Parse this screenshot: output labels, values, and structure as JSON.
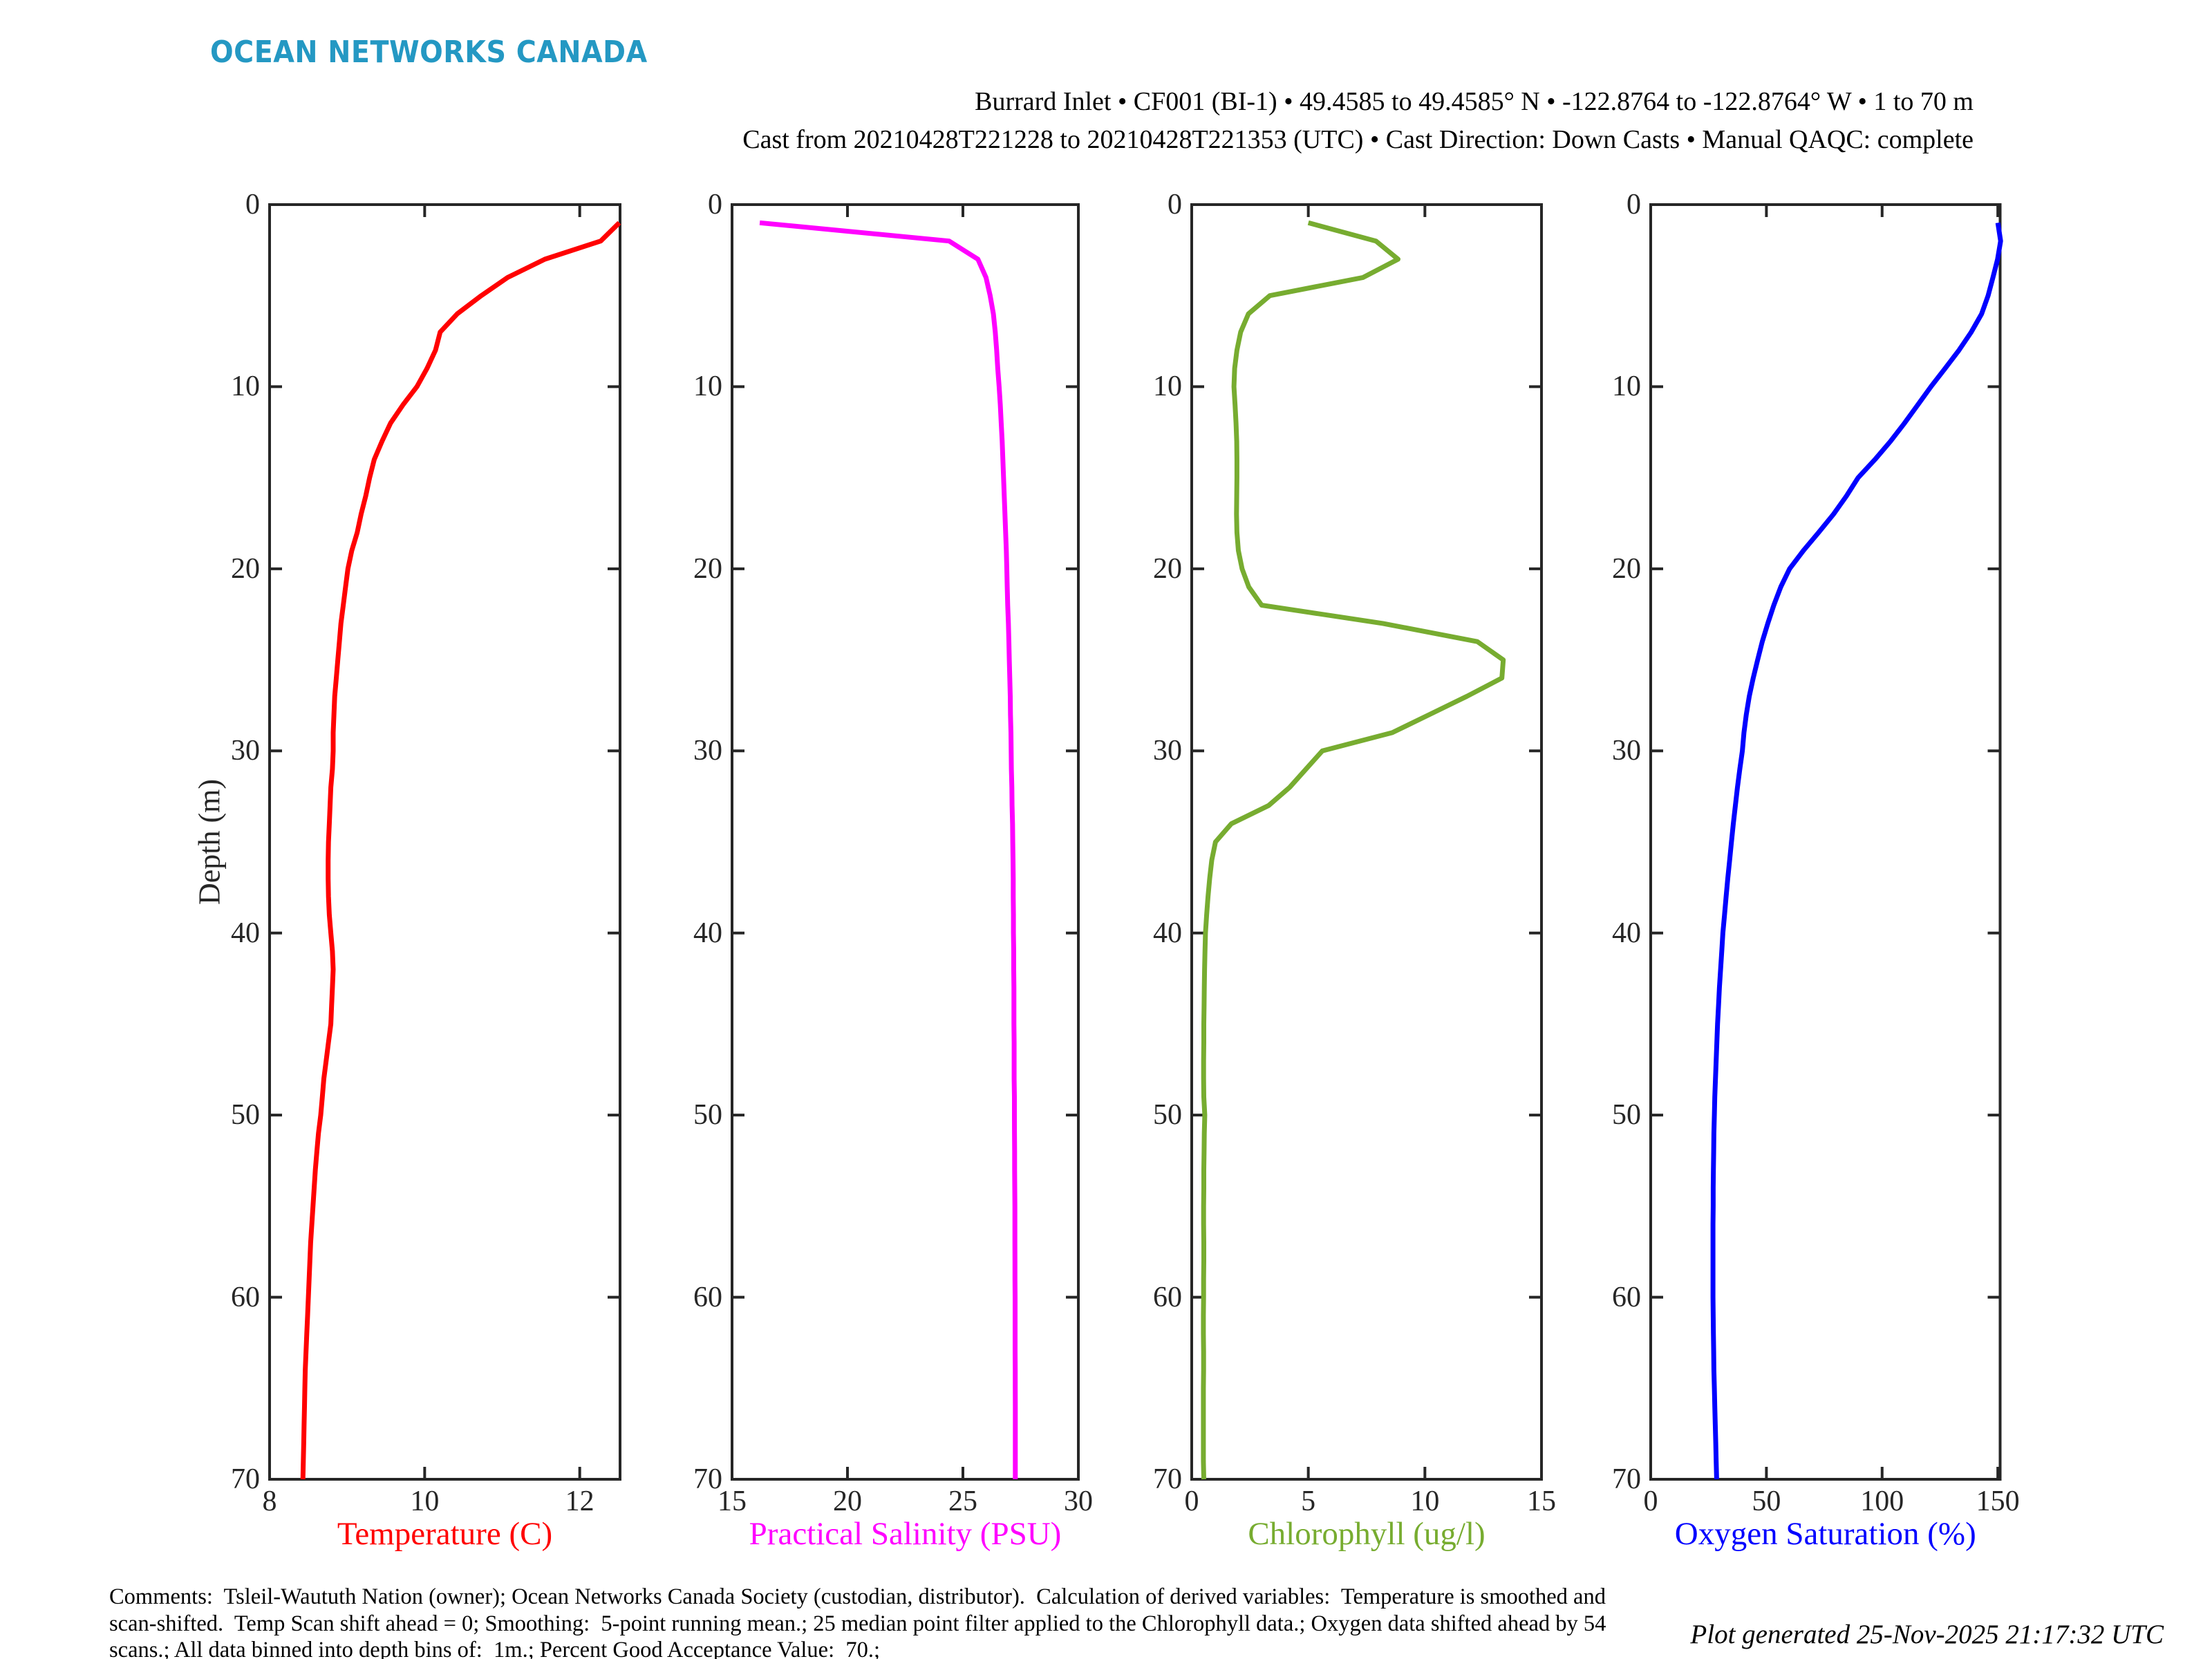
{
  "logo": {
    "text": "OCEAN NETWORKS CANADA",
    "color": "#2498c3"
  },
  "title": {
    "line1": "Burrard Inlet • CF001 (BI-1) • 49.4585 to 49.4585° N • -122.8764 to -122.8764° W • 1 to 70 m",
    "line2": "Cast from 20210428T221228 to 20210428T221353 (UTC) • Cast Direction: Down Casts • Manual QAQC: complete"
  },
  "footer": {
    "comments_lines": [
      "Comments:  Tsleil-Waututh Nation (owner); Ocean Networks Canada Society (custodian, distributor).  Calculation of derived variables:  Temperature is smoothed and",
      "scan-shifted.  Temp Scan shift ahead = 0; Smoothing:  5-point running mean.; 25 median point filter applied to the Chlorophyll data.; Oxygen data shifted ahead by 54",
      "scans.; All data binned into depth bins of:  1m.; Percent Good Acceptance Value:  70.;"
    ],
    "generated": "Plot generated 25-Nov-2025 21:17:32 UTC"
  },
  "chart_data": {
    "type": "line",
    "subtype": "vertical-depth-profiles",
    "ylabel": "Depth (m)",
    "ylim": [
      0,
      70
    ],
    "yticks": [
      0,
      10,
      20,
      30,
      40,
      50,
      60,
      70
    ],
    "grid": false,
    "axis_color": "#262626",
    "depth_m": [
      1,
      2,
      3,
      4,
      5,
      6,
      7,
      8,
      9,
      10,
      11,
      12,
      13,
      14,
      15,
      16,
      17,
      18,
      19,
      20,
      21,
      22,
      23,
      24,
      25,
      26,
      27,
      28,
      29,
      30,
      31,
      32,
      33,
      34,
      35,
      36,
      37,
      38,
      39,
      40,
      41,
      42,
      43,
      44,
      45,
      46,
      47,
      48,
      49,
      50,
      51,
      52,
      53,
      54,
      55,
      56,
      57,
      58,
      59,
      60,
      61,
      62,
      63,
      64,
      65,
      66,
      67,
      68,
      69,
      70
    ],
    "panels": [
      {
        "xlabel": "Temperature (C)",
        "color": "#ff0000",
        "xlim": [
          8,
          12.52
        ],
        "xticks": [
          8,
          10,
          12
        ],
        "values": [
          12.51,
          12.27,
          11.55,
          11.07,
          10.73,
          10.42,
          10.2,
          10.14,
          10.03,
          9.9,
          9.72,
          9.56,
          9.45,
          9.35,
          9.29,
          9.24,
          9.18,
          9.13,
          9.06,
          9.01,
          8.98,
          8.95,
          8.92,
          8.9,
          8.88,
          8.86,
          8.84,
          8.83,
          8.82,
          8.82,
          8.81,
          8.79,
          8.78,
          8.77,
          8.76,
          8.755,
          8.755,
          8.76,
          8.77,
          8.79,
          8.81,
          8.82,
          8.81,
          8.8,
          8.79,
          8.76,
          8.73,
          8.7,
          8.68,
          8.66,
          8.63,
          8.61,
          8.59,
          8.575,
          8.56,
          8.545,
          8.53,
          8.52,
          8.51,
          8.5,
          8.49,
          8.48,
          8.47,
          8.46,
          8.455,
          8.45,
          8.445,
          8.44,
          8.435,
          8.43
        ]
      },
      {
        "xlabel": "Practical Salinity (PSU)",
        "color": "#ff00ff",
        "xlim": [
          15,
          30
        ],
        "xticks": [
          15,
          20,
          25,
          30
        ],
        "values": [
          16.2,
          24.4,
          25.65,
          26.0,
          26.18,
          26.32,
          26.4,
          26.46,
          26.51,
          26.57,
          26.62,
          26.66,
          26.7,
          26.73,
          26.76,
          26.79,
          26.82,
          26.85,
          26.88,
          26.9,
          26.92,
          26.94,
          26.97,
          26.99,
          27.01,
          27.03,
          27.05,
          27.06,
          27.08,
          27.09,
          27.1,
          27.12,
          27.13,
          27.15,
          27.16,
          27.17,
          27.18,
          27.18,
          27.19,
          27.19,
          27.2,
          27.2,
          27.21,
          27.21,
          27.21,
          27.22,
          27.22,
          27.22,
          27.23,
          27.23,
          27.235,
          27.24,
          27.24,
          27.245,
          27.25,
          27.25,
          27.25,
          27.255,
          27.255,
          27.26,
          27.26,
          27.26,
          27.26,
          27.265,
          27.265,
          27.27,
          27.27,
          27.27,
          27.27,
          27.27
        ]
      },
      {
        "xlabel": "Chlorophyll (ug/l)",
        "color": "#77ac30",
        "xlim": [
          0,
          15
        ],
        "xticks": [
          0,
          5,
          10,
          15
        ],
        "values": [
          5.0,
          7.9,
          8.85,
          7.35,
          3.35,
          2.43,
          2.1,
          1.94,
          1.84,
          1.81,
          1.86,
          1.9,
          1.93,
          1.94,
          1.94,
          1.93,
          1.92,
          1.94,
          2.0,
          2.16,
          2.45,
          3.0,
          8.2,
          12.25,
          13.36,
          13.3,
          11.8,
          10.2,
          8.6,
          5.6,
          4.9,
          4.2,
          3.3,
          1.7,
          1.02,
          0.86,
          0.77,
          0.7,
          0.64,
          0.59,
          0.57,
          0.55,
          0.54,
          0.53,
          0.52,
          0.52,
          0.51,
          0.51,
          0.52,
          0.56,
          0.54,
          0.53,
          0.52,
          0.52,
          0.51,
          0.51,
          0.52,
          0.52,
          0.51,
          0.51,
          0.5,
          0.5,
          0.51,
          0.51,
          0.5,
          0.5,
          0.5,
          0.5,
          0.5,
          0.52
        ]
      },
      {
        "xlabel": "Oxygen Saturation (%)",
        "color": "#0000ff",
        "xlim": [
          0,
          151
        ],
        "xticks": [
          0,
          50,
          100,
          150
        ],
        "values": [
          150.0,
          151.2,
          149.9,
          147.9,
          145.8,
          143.0,
          138.5,
          133.2,
          127.2,
          121.1,
          115.4,
          109.7,
          103.6,
          96.9,
          89.6,
          84.6,
          79.0,
          72.6,
          66.0,
          60.0,
          56.2,
          53.2,
          50.6,
          48.2,
          46.2,
          44.3,
          42.6,
          41.3,
          40.3,
          39.6,
          38.5,
          37.5,
          36.6,
          35.7,
          34.9,
          34.1,
          33.3,
          32.6,
          31.9,
          31.2,
          30.7,
          30.2,
          29.7,
          29.3,
          28.9,
          28.6,
          28.3,
          28.0,
          27.7,
          27.5,
          27.3,
          27.2,
          27.1,
          27.0,
          27.0,
          26.9,
          26.9,
          26.9,
          26.9,
          26.9,
          27.0,
          27.1,
          27.2,
          27.3,
          27.5,
          27.7,
          27.9,
          28.1,
          28.3,
          28.5
        ]
      }
    ]
  }
}
